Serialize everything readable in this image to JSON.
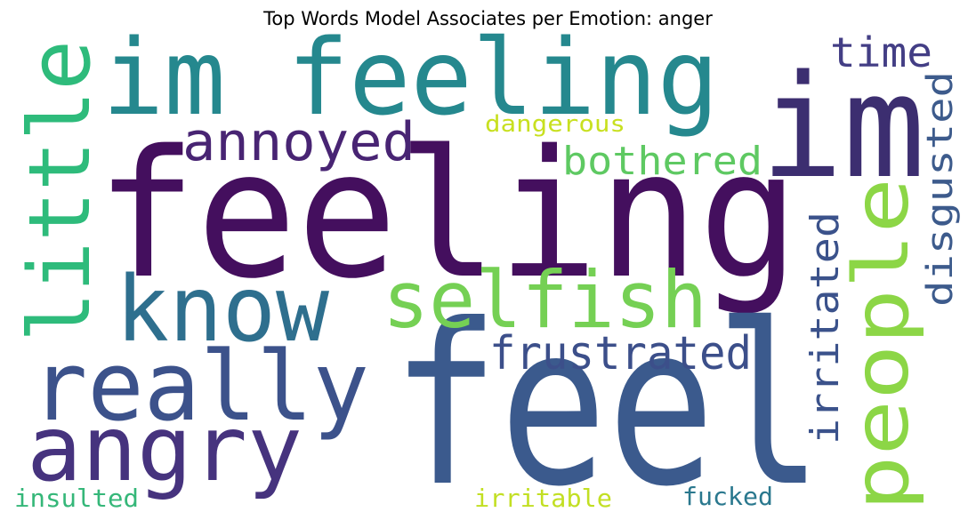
{
  "title": "Top Words Model Associates per Emotion: anger",
  "words": [
    {
      "text": "feeling",
      "color": "#440f5e"
    },
    {
      "text": "feel",
      "color": "#3b5a8d"
    },
    {
      "text": "im feeling",
      "color": "#25888e"
    },
    {
      "text": "im",
      "color": "#3c2e70"
    },
    {
      "text": "little",
      "color": "#2ebb7b"
    },
    {
      "text": "know",
      "color": "#2e6f8e"
    },
    {
      "text": "selfish",
      "color": "#75d054"
    },
    {
      "text": "really",
      "color": "#3c528b"
    },
    {
      "text": "angry",
      "color": "#46337e"
    },
    {
      "text": "people",
      "color": "#8cd646"
    },
    {
      "text": "annoyed",
      "color": "#482473"
    },
    {
      "text": "frustrated",
      "color": "#3c4f8a"
    },
    {
      "text": "disgusted",
      "color": "#3d5b8c"
    },
    {
      "text": "irritated",
      "color": "#3b528b"
    },
    {
      "text": "bothered",
      "color": "#5ec962"
    },
    {
      "text": "time",
      "color": "#433e85"
    },
    {
      "text": "dangerous",
      "color": "#c8e020"
    },
    {
      "text": "insulted",
      "color": "#35b779"
    },
    {
      "text": "irritable",
      "color": "#c2df23"
    },
    {
      "text": "fucked",
      "color": "#2a788e"
    }
  ]
}
